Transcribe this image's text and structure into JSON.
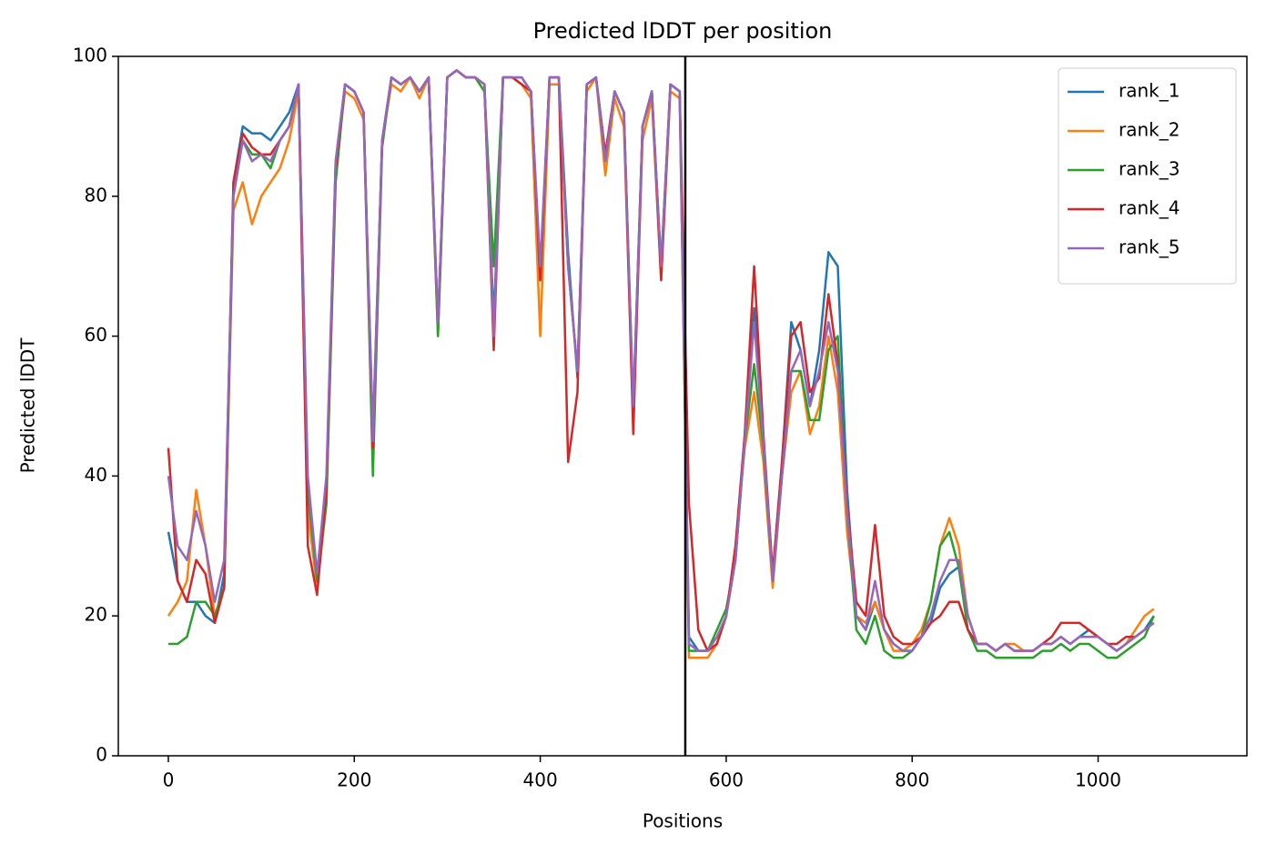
{
  "chart_data": {
    "type": "line",
    "title": "Predicted lDDT per position",
    "x_label": "Positions",
    "y_label": "Predicted lDDT",
    "x": [
      0,
      10,
      20,
      30,
      40,
      50,
      60,
      70,
      80,
      90,
      100,
      110,
      120,
      130,
      140,
      150,
      160,
      170,
      180,
      190,
      200,
      210,
      220,
      230,
      240,
      250,
      260,
      270,
      280,
      290,
      300,
      310,
      320,
      330,
      340,
      350,
      360,
      370,
      380,
      390,
      400,
      410,
      420,
      430,
      440,
      450,
      460,
      470,
      480,
      490,
      500,
      510,
      520,
      530,
      540,
      550,
      560,
      570,
      580,
      590,
      600,
      610,
      620,
      630,
      640,
      650,
      660,
      670,
      680,
      690,
      700,
      710,
      720,
      730,
      740,
      750,
      760,
      770,
      780,
      790,
      800,
      810,
      820,
      830,
      840,
      850,
      860,
      870,
      880,
      890,
      900,
      910,
      920,
      930,
      940,
      950,
      960,
      970,
      980,
      990,
      1000,
      1010,
      1020,
      1030,
      1040,
      1050,
      1060
    ],
    "series": [
      {
        "name": "rank_1",
        "color": "#1f77b4",
        "values": [
          32,
          25,
          22,
          22,
          20,
          19,
          26,
          82,
          90,
          89,
          89,
          88,
          90,
          92,
          96,
          38,
          25,
          38,
          85,
          96,
          95,
          92,
          46,
          88,
          97,
          96,
          97,
          95,
          97,
          61,
          97,
          98,
          97,
          97,
          96,
          62,
          97,
          97,
          97,
          95,
          68,
          97,
          97,
          72,
          54,
          96,
          97,
          86,
          95,
          92,
          49,
          90,
          95,
          70,
          96,
          95,
          17,
          15,
          15,
          16,
          20,
          28,
          46,
          64,
          45,
          26,
          42,
          62,
          58,
          50,
          58,
          72,
          70,
          38,
          20,
          18,
          22,
          18,
          16,
          15,
          15,
          17,
          19,
          24,
          26,
          27,
          20,
          16,
          16,
          15,
          16,
          15,
          15,
          15,
          16,
          16,
          17,
          16,
          17,
          18,
          17,
          16,
          15,
          16,
          17,
          18,
          20
        ]
      },
      {
        "name": "rank_2",
        "color": "#ff7f0e",
        "values": [
          20,
          22,
          25,
          38,
          30,
          20,
          24,
          78,
          82,
          76,
          80,
          82,
          84,
          88,
          95,
          35,
          24,
          36,
          84,
          95,
          94,
          91,
          44,
          88,
          96,
          95,
          97,
          94,
          97,
          60,
          97,
          98,
          97,
          97,
          95,
          60,
          97,
          97,
          96,
          94,
          60,
          96,
          96,
          70,
          55,
          95,
          97,
          83,
          94,
          90,
          48,
          88,
          94,
          68,
          95,
          94,
          14,
          14,
          14,
          16,
          20,
          30,
          44,
          52,
          42,
          24,
          40,
          52,
          55,
          46,
          50,
          60,
          52,
          32,
          20,
          19,
          22,
          18,
          15,
          15,
          16,
          18,
          22,
          30,
          34,
          30,
          20,
          16,
          16,
          15,
          16,
          16,
          15,
          15,
          16,
          16,
          17,
          16,
          17,
          17,
          17,
          16,
          15,
          16,
          18,
          20,
          21
        ]
      },
      {
        "name": "rank_3",
        "color": "#2ca02c",
        "values": [
          16,
          16,
          17,
          22,
          22,
          20,
          24,
          80,
          88,
          86,
          86,
          84,
          88,
          90,
          96,
          38,
          25,
          36,
          82,
          96,
          95,
          92,
          40,
          87,
          97,
          96,
          97,
          95,
          97,
          60,
          97,
          98,
          97,
          97,
          95,
          70,
          97,
          97,
          96,
          95,
          68,
          97,
          97,
          70,
          55,
          96,
          97,
          85,
          95,
          92,
          50,
          90,
          95,
          70,
          96,
          95,
          15,
          15,
          15,
          18,
          21,
          28,
          45,
          56,
          44,
          25,
          40,
          55,
          55,
          48,
          48,
          58,
          60,
          35,
          18,
          16,
          20,
          15,
          14,
          14,
          15,
          17,
          22,
          30,
          32,
          27,
          18,
          15,
          15,
          14,
          14,
          14,
          14,
          14,
          15,
          15,
          16,
          15,
          16,
          16,
          15,
          14,
          14,
          15,
          16,
          17,
          20
        ]
      },
      {
        "name": "rank_4",
        "color": "#d62728",
        "values": [
          44,
          25,
          22,
          28,
          26,
          19,
          24,
          82,
          89,
          87,
          86,
          86,
          88,
          90,
          96,
          30,
          23,
          38,
          84,
          96,
          95,
          92,
          44,
          88,
          97,
          96,
          97,
          95,
          97,
          62,
          97,
          98,
          97,
          97,
          96,
          58,
          97,
          97,
          96,
          95,
          68,
          97,
          97,
          42,
          52,
          96,
          97,
          86,
          95,
          92,
          46,
          90,
          95,
          68,
          96,
          95,
          36,
          18,
          15,
          16,
          20,
          30,
          46,
          70,
          46,
          26,
          42,
          60,
          62,
          52,
          54,
          66,
          56,
          36,
          22,
          20,
          33,
          20,
          17,
          16,
          16,
          17,
          19,
          20,
          22,
          22,
          18,
          16,
          16,
          15,
          16,
          15,
          15,
          15,
          16,
          17,
          19,
          19,
          19,
          18,
          17,
          16,
          16,
          17,
          17,
          18,
          19
        ]
      },
      {
        "name": "rank_5",
        "color": "#9467bd",
        "values": [
          40,
          30,
          28,
          35,
          30,
          22,
          28,
          80,
          88,
          85,
          86,
          85,
          88,
          90,
          96,
          40,
          26,
          40,
          85,
          96,
          95,
          92,
          45,
          88,
          97,
          96,
          97,
          95,
          97,
          62,
          97,
          98,
          97,
          97,
          96,
          60,
          97,
          97,
          97,
          95,
          70,
          97,
          97,
          70,
          55,
          96,
          97,
          85,
          95,
          92,
          50,
          90,
          95,
          70,
          96,
          95,
          16,
          15,
          15,
          17,
          20,
          28,
          45,
          62,
          45,
          25,
          40,
          55,
          58,
          50,
          55,
          62,
          55,
          35,
          20,
          18,
          25,
          18,
          16,
          15,
          15,
          17,
          20,
          25,
          28,
          28,
          20,
          16,
          16,
          15,
          16,
          15,
          15,
          15,
          16,
          16,
          17,
          16,
          17,
          17,
          17,
          16,
          15,
          16,
          17,
          18,
          19
        ]
      }
    ],
    "vline": {
      "x": 556,
      "color": "#000000"
    },
    "xlim": [
      -53.8,
      1160
    ],
    "xticks": [
      0,
      200,
      400,
      600,
      800,
      1000
    ],
    "ylim": [
      0,
      100
    ],
    "yticks": [
      0,
      20,
      40,
      60,
      80,
      100
    ],
    "grid": false,
    "legend": "upper right"
  }
}
